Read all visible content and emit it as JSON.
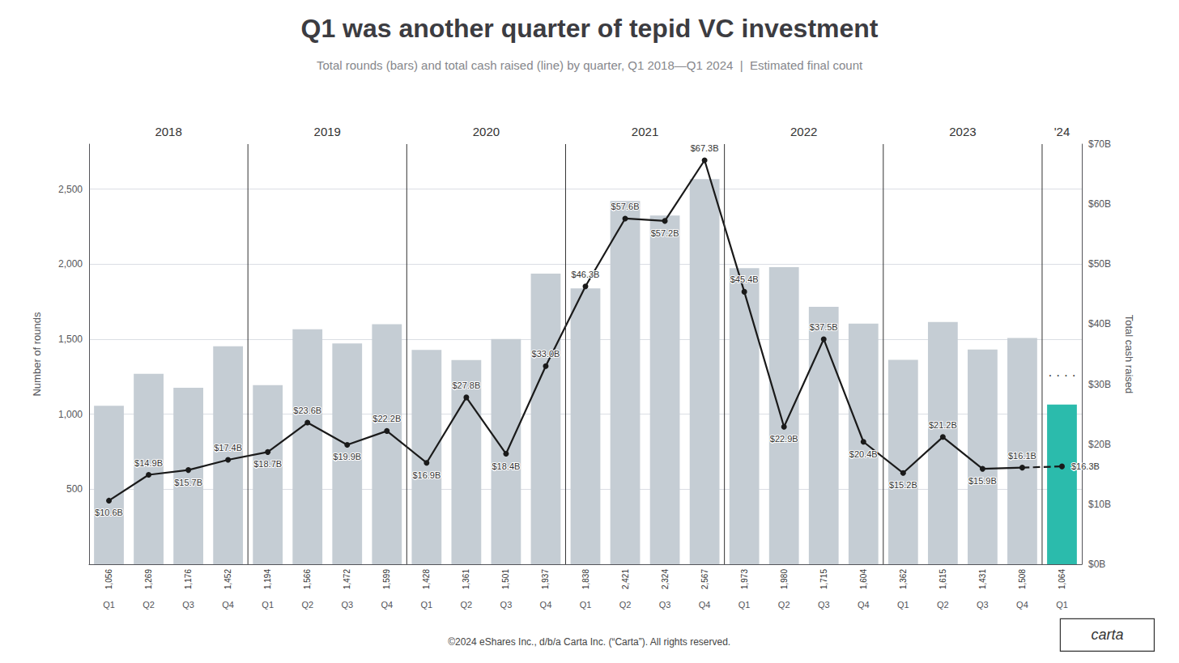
{
  "chart_data": {
    "type": "bar",
    "title": "Q1 was another quarter of tepid VC investment",
    "subtitle": "Total rounds (bars) and total cash raised (line) by quarter, Q1 2018—Q1 2024  |  Estimated final count",
    "categories": [
      "Q1",
      "Q2",
      "Q3",
      "Q4",
      "Q1",
      "Q2",
      "Q3",
      "Q4",
      "Q1",
      "Q2",
      "Q3",
      "Q4",
      "Q1",
      "Q2",
      "Q3",
      "Q4",
      "Q1",
      "Q2",
      "Q3",
      "Q4",
      "Q1",
      "Q2",
      "Q3",
      "Q4",
      "Q1"
    ],
    "group_labels": [
      "2018",
      "2019",
      "2020",
      "2021",
      "2022",
      "2023",
      "'24"
    ],
    "ylabel": "Number of rounds",
    "y2label": "Total cash raised",
    "ylim": [
      0,
      2800
    ],
    "yticks": [
      500,
      {
        "value": 1000,
        "label": "1,000"
      },
      {
        "value": 1500,
        "label": "1,500"
      },
      {
        "value": 2000,
        "label": "2,000"
      },
      {
        "value": 2500,
        "label": "2,500"
      }
    ],
    "y2lim": [
      0,
      70
    ],
    "y2ticks": [
      {
        "value": 0,
        "label": "$0B"
      },
      {
        "value": 10,
        "label": "$10B"
      },
      {
        "value": 20,
        "label": "$20B"
      },
      {
        "value": 30,
        "label": "$30B"
      },
      {
        "value": 40,
        "label": "$40B"
      },
      {
        "value": 50,
        "label": "$50B"
      },
      {
        "value": 60,
        "label": "$60B"
      },
      {
        "value": 70,
        "label": "$70B"
      }
    ],
    "grid": true,
    "series": [
      {
        "type": "bar",
        "colors": [
          "#c5cdd4",
          "#c5cdd4",
          "#c5cdd4",
          "#c5cdd4",
          "#c5cdd4",
          "#c5cdd4",
          "#c5cdd4",
          "#c5cdd4",
          "#c5cdd4",
          "#c5cdd4",
          "#c5cdd4",
          "#c5cdd4",
          "#c5cdd4",
          "#c5cdd4",
          "#c5cdd4",
          "#c5cdd4",
          "#c5cdd4",
          "#c5cdd4",
          "#c5cdd4",
          "#c5cdd4",
          "#c5cdd4",
          "#c5cdd4",
          "#c5cdd4",
          "#c5cdd4",
          "#2bbbac"
        ],
        "values": [
          1056,
          1269,
          1176,
          1452,
          1194,
          1566,
          1472,
          1599,
          1428,
          1361,
          1501,
          1937,
          1838,
          2421,
          2324,
          2567,
          1973,
          1980,
          1715,
          1604,
          1362,
          1615,
          1431,
          1508,
          1064
        ],
        "value_labels": [
          "1,056",
          "1,269",
          "1,176",
          "1,452",
          "1,194",
          "1,566",
          "1,472",
          "1,599",
          "1,428",
          "1,361",
          "1,501",
          "1,937",
          "1,838",
          "2,421",
          "2,324",
          "2,567",
          "1,973",
          "1,980",
          "1,715",
          "1,604",
          "1,362",
          "1,615",
          "1,431",
          "1,508",
          "1,064"
        ],
        "data_labels": true
      },
      {
        "type": "line",
        "axis": "y2",
        "color": "#1a1a1a",
        "marker": "circle",
        "line_style": "solid",
        "values": [
          10.6,
          14.9,
          15.7,
          17.4,
          18.7,
          23.6,
          19.9,
          22.2,
          16.9,
          27.8,
          18.4,
          33.0,
          46.3,
          57.6,
          57.2,
          67.3,
          45.4,
          22.9,
          37.5,
          20.4,
          15.2,
          21.2,
          15.9,
          16.1,
          16.3
        ],
        "value_labels": [
          "$10.6B",
          "$14.9B",
          "$15.7B",
          "$17.4B",
          "$18.7B",
          "$23.6B",
          "$19.9B",
          "$22.2B",
          "$16.9B",
          "$27.8B",
          "$18.4B",
          "$33.0B",
          "$46.3B",
          "$57.6B",
          "$57.2B",
          "$67.3B",
          "$45.4B",
          "$22.9B",
          "$37.5B",
          "$20.4B",
          "$15.2B",
          "$21.2B",
          "$15.9B",
          "$16.1B",
          "$16.3B"
        ],
        "data_labels": true
      }
    ],
    "annotations": [
      "· · · ·",
      "carta",
      "©2024 eShares Inc., d/b/a Carta Inc. (“Carta”). All rights reserved."
    ]
  }
}
